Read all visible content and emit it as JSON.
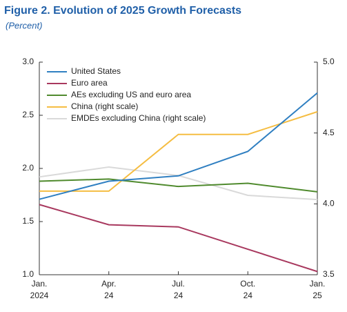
{
  "chart_data": {
    "type": "line",
    "title": "Figure 2.  Evolution of 2025 Growth Forecasts",
    "subtitle": "(Percent)",
    "categories": [
      [
        "Jan.",
        "2024"
      ],
      [
        "Apr.",
        "24"
      ],
      [
        "Jul.",
        "24"
      ],
      [
        "Oct.",
        "24"
      ],
      [
        "Jan.",
        "25"
      ]
    ],
    "series": [
      {
        "name": "United States",
        "color": "#2f7fc1",
        "values": [
          1.71,
          1.88,
          1.93,
          2.16,
          2.71
        ]
      },
      {
        "name": "Euro area",
        "color": "#a8385e",
        "values": [
          1.66,
          1.47,
          1.45,
          1.24,
          1.03
        ]
      },
      {
        "name": "AEs excluding US and euro area",
        "color": "#4f8a2d",
        "values": [
          1.88,
          1.9,
          1.83,
          1.86,
          1.78
        ]
      },
      {
        "name": "China (right scale)",
        "color": "#f5bd42",
        "axis": "y2",
        "values": [
          4.09,
          4.09,
          4.49,
          4.49,
          4.65
        ]
      },
      {
        "name": "EMDEs excluding China (right scale)",
        "color": "#d9d9d9",
        "axis": "y2",
        "values": [
          4.19,
          4.26,
          4.2,
          4.06,
          4.03
        ]
      }
    ],
    "ylim": [
      1.0,
      3.0
    ],
    "yticks": [
      {
        "value": 1,
        "label": "1.0"
      },
      1.5,
      {
        "value": 2,
        "label": "2.0"
      },
      2.5,
      {
        "value": 3,
        "label": "3.0"
      }
    ],
    "y2lim": [
      3.5,
      5.0
    ],
    "y2ticks": [
      3.5,
      {
        "value": 4,
        "label": "4.0"
      },
      4.5,
      {
        "value": 5,
        "label": "5.0"
      }
    ],
    "legend": "upper left"
  }
}
